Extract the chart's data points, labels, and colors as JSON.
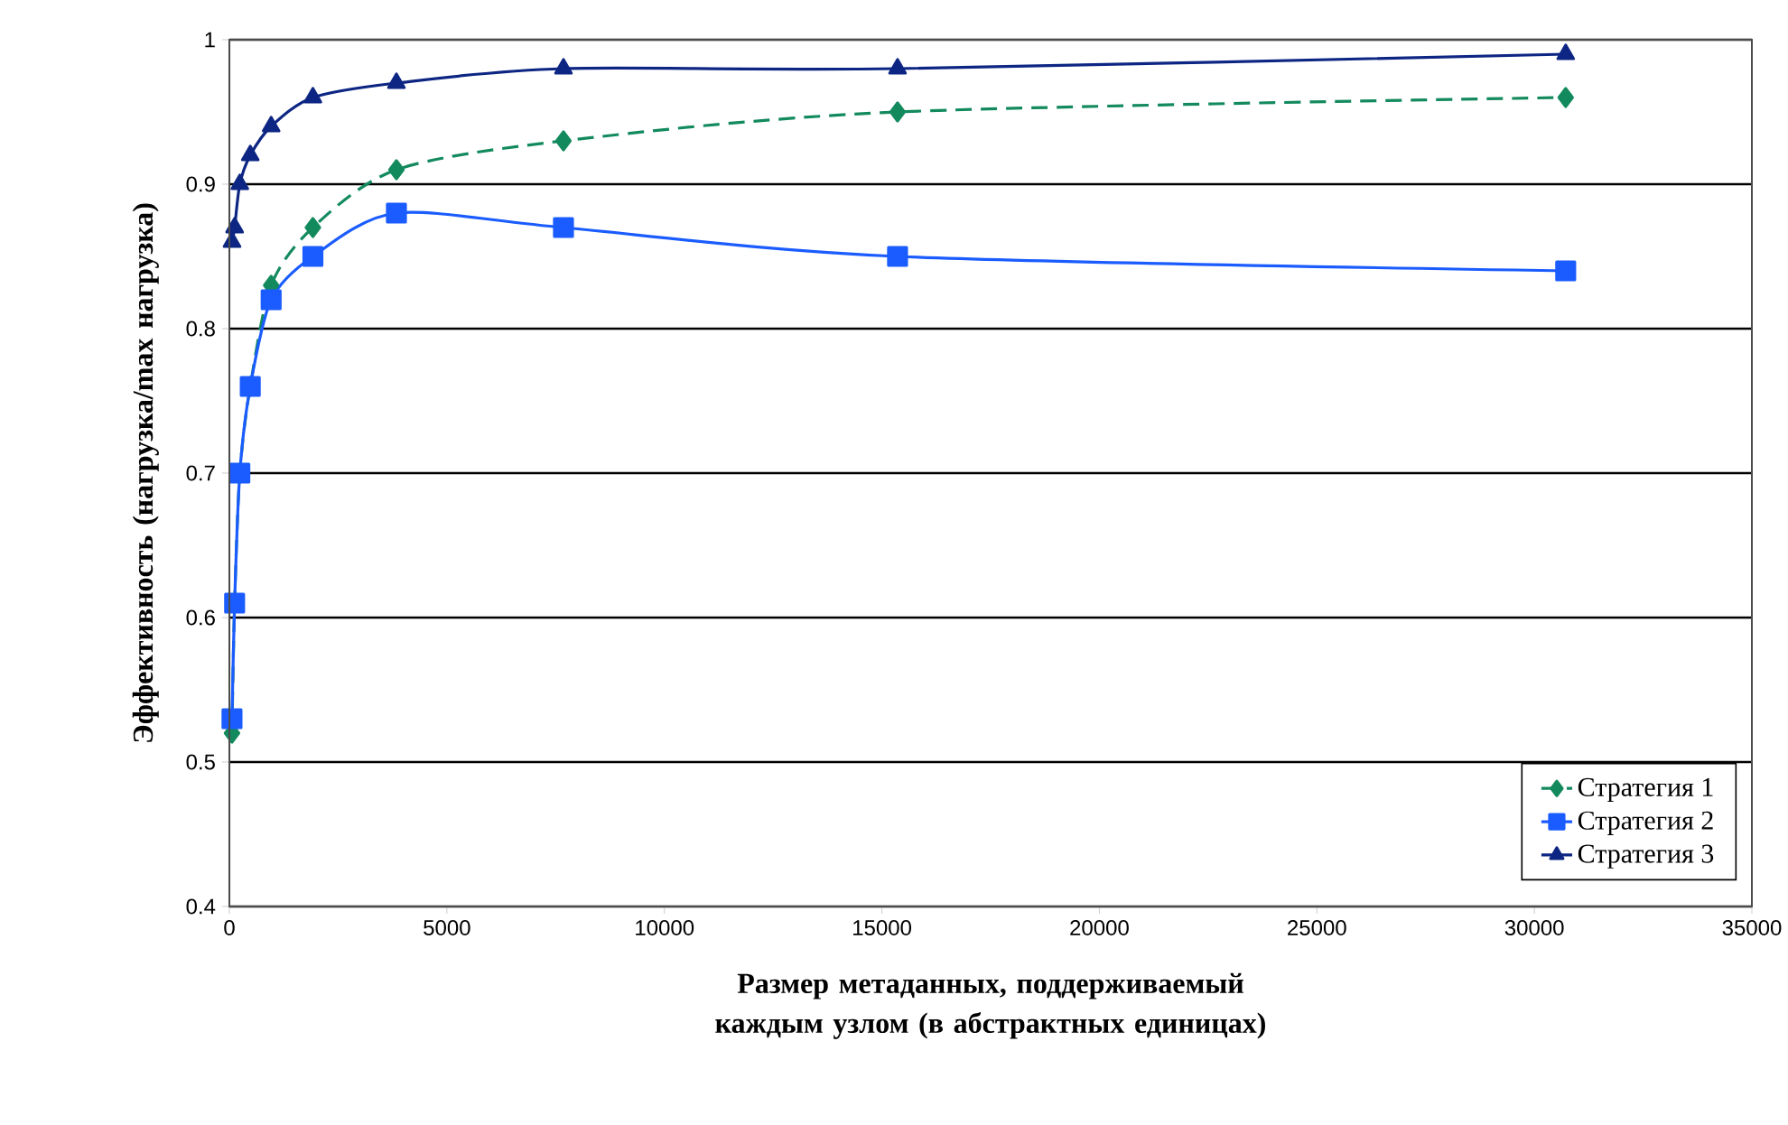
{
  "chart_data": {
    "type": "line",
    "xlabel": "Размер метаданных, поддерживаемый каждым узлом (в абстрактных единицах)",
    "ylabel": "Эффективность (нагрузка/max нагрузка)",
    "x": [
      60,
      120,
      240,
      480,
      960,
      1920,
      3840,
      7680,
      15360,
      30720
    ],
    "series": [
      {
        "name": "Стратегия 1",
        "color": "#138a5e",
        "marker": "diamond",
        "line_style": "dashed",
        "values": [
          0.52,
          0.61,
          0.7,
          0.76,
          0.83,
          0.87,
          0.91,
          0.93,
          0.95,
          0.96
        ]
      },
      {
        "name": "Стратегия 2",
        "color": "#1a5cff",
        "marker": "square",
        "line_style": "solid",
        "values": [
          0.53,
          0.61,
          0.7,
          0.76,
          0.82,
          0.85,
          0.88,
          0.87,
          0.85,
          0.84
        ]
      },
      {
        "name": "Стратегия 3",
        "color": "#0d2683",
        "marker": "triangle",
        "line_style": "solid",
        "values": [
          0.86,
          0.87,
          0.9,
          0.92,
          0.94,
          0.96,
          0.97,
          0.98,
          0.98,
          0.99
        ]
      }
    ],
    "xlim": [
      0,
      35000
    ],
    "xticks": [
      0,
      5000,
      10000,
      15000,
      20000,
      25000,
      30000,
      35000
    ],
    "ylim": [
      0.4,
      1
    ],
    "yticks": [
      0.4,
      0.5,
      0.6,
      0.7,
      0.8,
      0.9,
      1
    ],
    "grid": "y",
    "legend": "bottom right"
  }
}
